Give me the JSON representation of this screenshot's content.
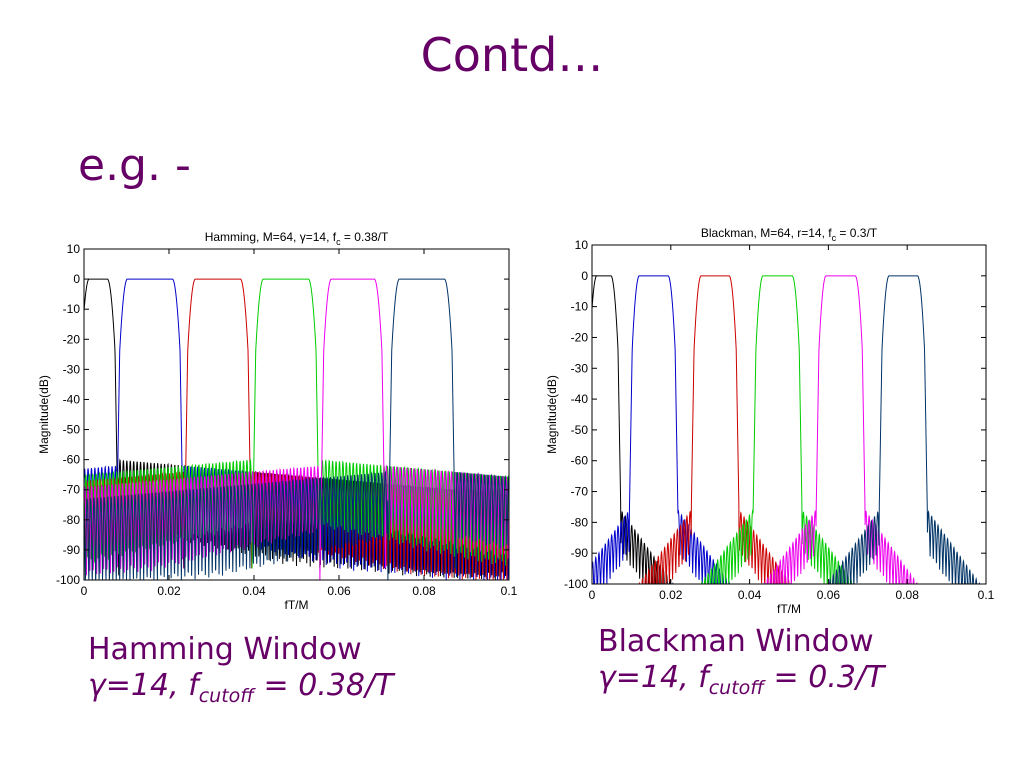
{
  "slide": {
    "title": "Contd…",
    "bullet": "e.g. -"
  },
  "captions": [
    {
      "name": "Hamming Window",
      "gamma": "γ",
      "eq": "=14, f",
      "sub": "cutoff",
      "rest": " = 0.38/T"
    },
    {
      "name": "Blackman Window",
      "gamma": "γ",
      "eq": "=14, f",
      "sub": "cutoff",
      "rest": " = 0.3/T"
    }
  ],
  "chart_data": [
    {
      "type": "line",
      "title": {
        "main": "Hamming, M=64, ",
        "greek": "γ",
        "mid": "=14, f",
        "sub": "c",
        "end": " = 0.38/T"
      },
      "xlabel": "fT/M",
      "ylabel": "Magnitude(dB)",
      "xlim": [
        0,
        0.1
      ],
      "ylim": [
        -100,
        10
      ],
      "xticks": [
        0,
        0.02,
        0.04,
        0.06,
        0.08,
        0.1
      ],
      "xtick_labels": [
        "0",
        "0.02",
        "0.04",
        "0.06",
        "0.08",
        "0.1"
      ],
      "yticks": [
        10,
        0,
        -10,
        -20,
        -30,
        -40,
        -50,
        -60,
        -70,
        -80,
        -90,
        -100
      ],
      "ytick_labels": [
        "10",
        "0",
        "-10",
        "-20",
        "-30",
        "-40",
        "-50",
        "-60",
        "-70",
        "-80",
        "-90",
        "-100"
      ],
      "window": "hamming",
      "sidelobe_db": -60,
      "series": [
        {
          "color": "#000000",
          "passband": [
            0.0,
            0.0067
          ]
        },
        {
          "color": "#0000cc",
          "passband": [
            0.009,
            0.022
          ]
        },
        {
          "color": "#cc0000",
          "passband": [
            0.025,
            0.038
          ]
        },
        {
          "color": "#00cc00",
          "passband": [
            0.041,
            0.054
          ]
        },
        {
          "color": "#ee00ee",
          "passband": [
            0.057,
            0.0695
          ]
        },
        {
          "color": "#003366",
          "passband": [
            0.073,
            0.086
          ]
        }
      ]
    },
    {
      "type": "line",
      "title": {
        "main": "Blackman, M=64, r=14, f",
        "greek": "",
        "mid": "",
        "sub": "c",
        "end": " = 0.3/T"
      },
      "xlabel": "fT/M",
      "ylabel": "Magnitude(dB)",
      "xlim": [
        0,
        0.1
      ],
      "ylim": [
        -100,
        10
      ],
      "xticks": [
        0,
        0.02,
        0.04,
        0.06,
        0.08,
        0.1
      ],
      "xtick_labels": [
        "0",
        "0.02",
        "0.04",
        "0.06",
        "0.08",
        "0.1"
      ],
      "yticks": [
        10,
        0,
        -10,
        -20,
        -30,
        -40,
        -50,
        -60,
        -70,
        -80,
        -90,
        -100
      ],
      "ytick_labels": [
        "10",
        "0",
        "-10",
        "-20",
        "-30",
        "-40",
        "-50",
        "-60",
        "-70",
        "-80",
        "-90",
        "-100"
      ],
      "window": "blackman",
      "sidelobe_db": -76,
      "series": [
        {
          "color": "#000000",
          "passband": [
            0.0,
            0.006
          ]
        },
        {
          "color": "#0000cc",
          "passband": [
            0.0108,
            0.0205
          ]
        },
        {
          "color": "#cc0000",
          "passband": [
            0.0265,
            0.036
          ]
        },
        {
          "color": "#00cc00",
          "passband": [
            0.0422,
            0.052
          ]
        },
        {
          "color": "#ee00ee",
          "passband": [
            0.0582,
            0.068
          ]
        },
        {
          "color": "#003366",
          "passband": [
            0.0742,
            0.0838
          ]
        }
      ]
    }
  ]
}
